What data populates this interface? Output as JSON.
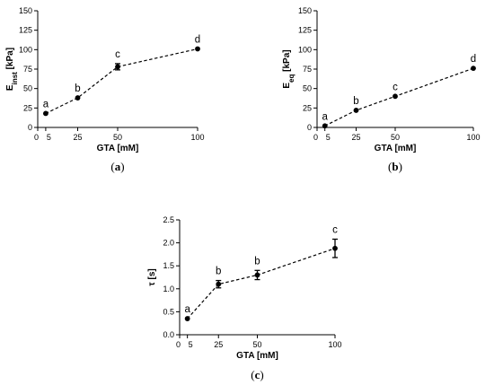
{
  "chart_data": [
    {
      "type": "line",
      "panel_label_prefix": "(",
      "panel_label": "a",
      "panel_label_suffix": ")",
      "xlabel": "GTA [mM]",
      "ylabel_main": "E",
      "ylabel_sub": "inst",
      "ylabel_unit": " [kPa]",
      "x": [
        5,
        25,
        50,
        100
      ],
      "y": [
        18,
        38,
        78,
        101
      ],
      "err": [
        0,
        0,
        4,
        0
      ],
      "labels": [
        "a",
        "b",
        "c",
        "d"
      ],
      "xlim": [
        0,
        100
      ],
      "ylim": [
        0,
        150
      ],
      "xticks": [
        0,
        5,
        25,
        50,
        100
      ],
      "yticks": [
        0,
        25,
        50,
        75,
        100,
        125,
        150
      ],
      "grid": false
    },
    {
      "type": "line",
      "panel_label_prefix": "(",
      "panel_label": "b",
      "panel_label_suffix": ")",
      "xlabel": "GTA [mM]",
      "ylabel_main": "E",
      "ylabel_sub": "eq",
      "ylabel_unit": " [kPa]",
      "x": [
        5,
        25,
        50,
        100
      ],
      "y": [
        2,
        22,
        40,
        76
      ],
      "err": [
        0,
        0,
        0,
        0
      ],
      "labels": [
        "a",
        "b",
        "c",
        "d"
      ],
      "xlim": [
        0,
        100
      ],
      "ylim": [
        0,
        150
      ],
      "xticks": [
        0,
        5,
        25,
        50,
        100
      ],
      "yticks": [
        0,
        25,
        50,
        75,
        100,
        125,
        150
      ],
      "grid": false
    },
    {
      "type": "line",
      "panel_label_prefix": "(",
      "panel_label": "c",
      "panel_label_suffix": ")",
      "xlabel": "GTA [mM]",
      "ylabel_main": "τ [s]",
      "ylabel_sub": "",
      "ylabel_unit": "",
      "x": [
        5,
        25,
        50,
        100
      ],
      "y": [
        0.35,
        1.1,
        1.3,
        1.88
      ],
      "err": [
        0,
        0.08,
        0.1,
        0.2
      ],
      "labels": [
        "a",
        "b",
        "b",
        "c"
      ],
      "xlim": [
        0,
        100
      ],
      "ylim": [
        0,
        2.5
      ],
      "xticks": [
        0,
        5,
        25,
        50,
        100
      ],
      "yticks": [
        "0.0",
        "0.5",
        "1.0",
        "1.5",
        "2.0",
        "2.5"
      ],
      "grid": false
    }
  ]
}
